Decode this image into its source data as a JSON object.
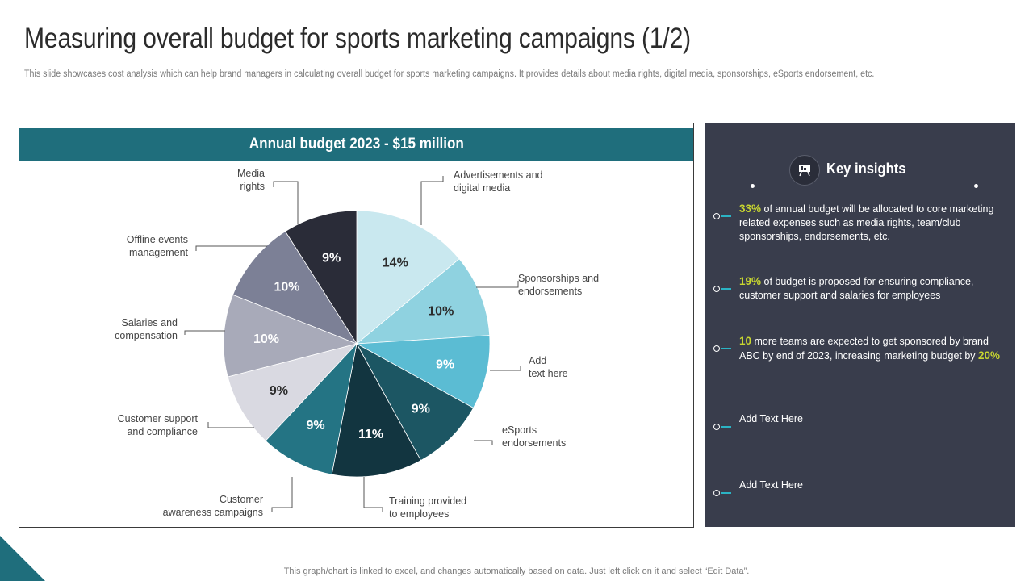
{
  "title": "Measuring overall budget for sports marketing campaigns (1/2)",
  "subtitle": "This slide showcases cost analysis which can help brand managers in calculating overall budget for sports marketing campaigns. It provides details about media rights, digital media, sponsorships, eSports endorsement, etc.",
  "chart_data": {
    "type": "pie",
    "title": "Annual budget 2023 - $15 million",
    "start_angle": "12 o'clock",
    "direction": "clockwise",
    "slices": [
      {
        "label": "Advertisements and digital media",
        "value": 14,
        "display": "14%",
        "color": "#c9e8ef",
        "label_color": "#2b2b2b"
      },
      {
        "label": "Sponsorships and endorsements",
        "value": 10,
        "display": "10%",
        "color": "#8fd2e0",
        "label_color": "#2b2b2b"
      },
      {
        "label": "Add text here",
        "value": 9,
        "display": "9%",
        "color": "#5bbcd3",
        "label_color": "#ffffff"
      },
      {
        "label": "eSports endorsements",
        "value": 9,
        "display": "9%",
        "color": "#1c5663",
        "label_color": "#ffffff"
      },
      {
        "label": "Training provided to employees",
        "value": 11,
        "display": "11%",
        "color": "#123540",
        "label_color": "#ffffff"
      },
      {
        "label": "Customer awareness campaigns",
        "value": 9,
        "display": "9%",
        "color": "#247484",
        "label_color": "#ffffff"
      },
      {
        "label": "Customer support and compliance",
        "value": 9,
        "display": "9%",
        "color": "#d9d9e1",
        "label_color": "#2b2b2b"
      },
      {
        "label": "Salaries and compensation",
        "value": 10,
        "display": "10%",
        "color": "#a8aab9",
        "label_color": "#ffffff"
      },
      {
        "label": "Offline events management",
        "value": 10,
        "display": "10%",
        "color": "#7c8096",
        "label_color": "#ffffff"
      },
      {
        "label": "Media rights",
        "value": 9,
        "display": "9%",
        "color": "#2a2c38",
        "label_color": "#ffffff"
      }
    ],
    "callouts": [
      {
        "lines": [
          "Advertisements and",
          "digital media"
        ],
        "align": "left"
      },
      {
        "lines": [
          "Sponsorships and",
          "endorsements"
        ],
        "align": "left"
      },
      {
        "lines": [
          "Add",
          "text here"
        ],
        "align": "left"
      },
      {
        "lines": [
          "eSports",
          "endorsements"
        ],
        "align": "left"
      },
      {
        "lines": [
          "Training  provided",
          "to employees"
        ],
        "align": "left"
      },
      {
        "lines": [
          "Customer",
          "awareness campaigns"
        ],
        "align": "right"
      },
      {
        "lines": [
          "Customer support",
          "and compliance"
        ],
        "align": "right"
      },
      {
        "lines": [
          "Salaries and",
          "compensation"
        ],
        "align": "right"
      },
      {
        "lines": [
          "Offline events",
          "management"
        ],
        "align": "right"
      },
      {
        "lines": [
          "Media",
          "rights"
        ],
        "align": "right"
      }
    ]
  },
  "insights": {
    "title": "Key insights",
    "icon": "presentation-board-icon",
    "items": [
      {
        "highlight": "33%",
        "text": " of annual budget will be allocated to core marketing related expenses such as media rights, team/club sponsorships, endorsements, etc."
      },
      {
        "highlight": "19%",
        "text": " of budget is proposed for ensuring compliance, customer support and salaries for employees"
      },
      {
        "highlight": "10",
        "text": " more teams are expected to get sponsored by brand ABC by end of 2023, increasing marketing budget by ",
        "highlight2": "20%"
      },
      {
        "text": "Add Text Here"
      },
      {
        "text": "Add Text Here"
      }
    ]
  },
  "footer": "This graph/chart is linked to excel,  and changes automatically based on data. Just left click on it and select “Edit Data”.",
  "colors": {
    "accent": "#1f6e7c",
    "panel": "#393d4c",
    "highlight": "#c8d630"
  }
}
